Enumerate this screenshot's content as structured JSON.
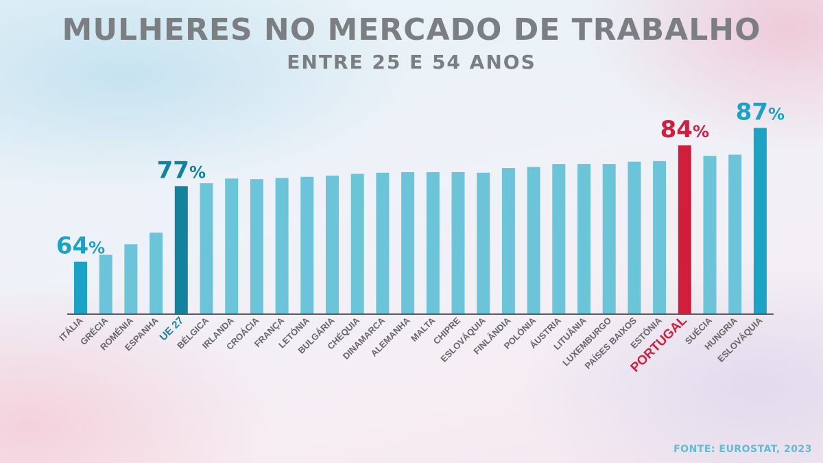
{
  "title": "MULHERES NO MERCADO DE TRABALHO",
  "subtitle": "ENTRE 25 E 54 ANOS",
  "source": "FONTE: EUROSTAT, 2023",
  "colors": {
    "bar": "#6cc4d9",
    "bar_end": "#1ba3c6",
    "eu": "#13829f",
    "portugal": "#d11e3c",
    "axis": "#5a5a5a",
    "label": "#666666"
  },
  "chart_data": {
    "type": "bar",
    "categories": [
      "ITÁLIA",
      "GRÉCIA",
      "ROMÉNIA",
      "ESPANHA",
      "UE 27",
      "BÉLGICA",
      "IRLANDA",
      "CROÁCIA",
      "FRANÇA",
      "LETÓNIA",
      "BULGÁRIA",
      "CHÉQUIA",
      "DINAMARCA",
      "ALEMANHA",
      "MALTA",
      "CHIPRE",
      "ESLOVÁQUIA",
      "FINLÂNDIA",
      "POLÓNIA",
      "ÁUSTRIA",
      "LITUÂNIA",
      "LUXEMBURGO",
      "PAÍSES BAIXOS",
      "ESTÓNIA",
      "PORTUGAL",
      "SUÉCIA",
      "HUNGRIA",
      "ESLOVÁQUIA"
    ],
    "values": [
      64,
      65.2,
      67,
      69,
      77,
      77.5,
      78.3,
      78.2,
      78.4,
      78.6,
      78.8,
      79.1,
      79.3,
      79.4,
      79.4,
      79.4,
      79.3,
      80.1,
      80.3,
      80.8,
      80.8,
      80.8,
      81.2,
      81.3,
      84,
      82.2,
      82.4,
      87
    ],
    "data_labels": [
      {
        "category_index": 0,
        "text": "64%"
      },
      {
        "category_index": 4,
        "text": "77%"
      },
      {
        "category_index": 24,
        "text": "84%"
      },
      {
        "category_index": 27,
        "text": "87%"
      }
    ],
    "highlights": {
      "eu": 4,
      "portugal": 24,
      "ends": [
        0,
        27
      ]
    },
    "ylim": [
      55,
      88
    ],
    "grid": false,
    "legend": "none",
    "xlabel": "",
    "ylabel": ""
  }
}
